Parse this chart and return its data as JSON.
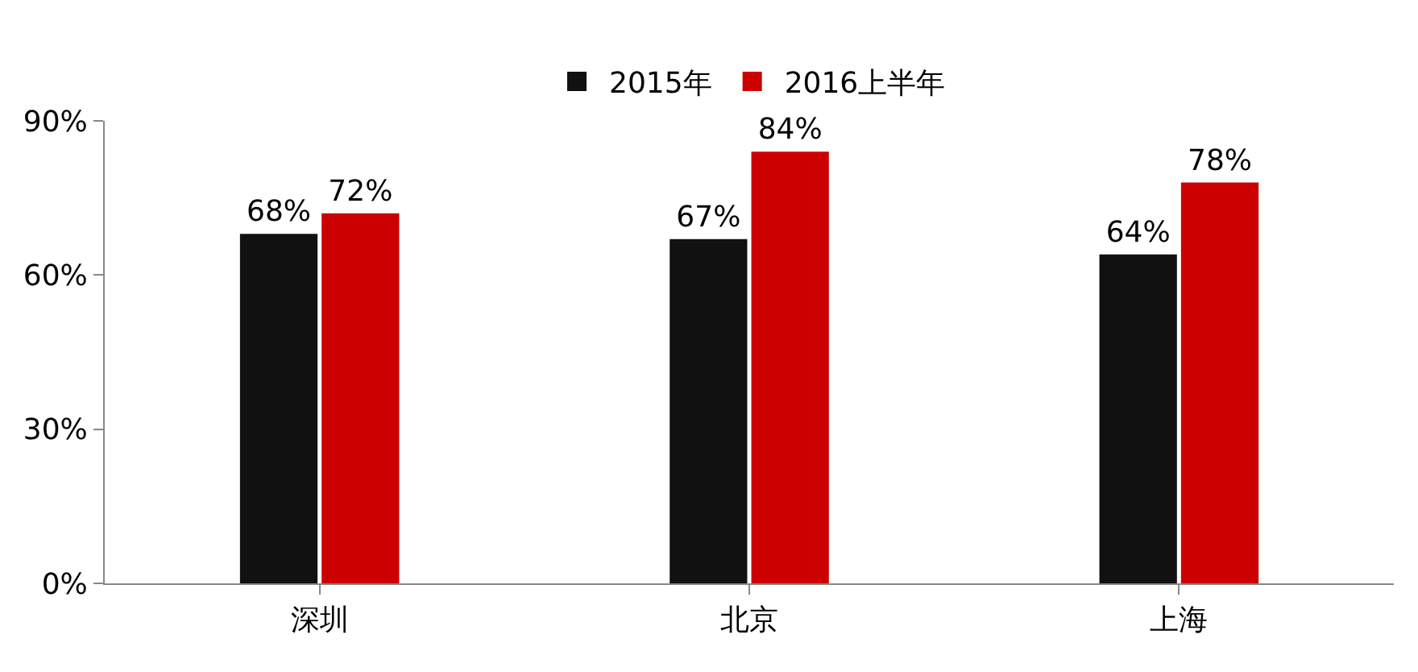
{
  "chart_data": {
    "type": "bar",
    "categories": [
      "深圳",
      "北京",
      "上海"
    ],
    "series": [
      {
        "name": "2015年",
        "color": "#111111",
        "values": [
          68,
          67,
          64
        ],
        "value_labels": [
          "68%",
          "67%",
          "64%"
        ]
      },
      {
        "name": "2016上半年",
        "color": "#cc0000",
        "values": [
          72,
          84,
          78
        ],
        "value_labels": [
          "72%",
          "84%",
          "78%"
        ]
      }
    ],
    "ylim": [
      0,
      90
    ],
    "yticks": [
      {
        "value": 0,
        "label": "0%"
      },
      {
        "value": 30,
        "label": "30%"
      },
      {
        "value": 60,
        "label": "60%"
      },
      {
        "value": 90,
        "label": "90%"
      }
    ],
    "grid": false,
    "legend": "top"
  }
}
